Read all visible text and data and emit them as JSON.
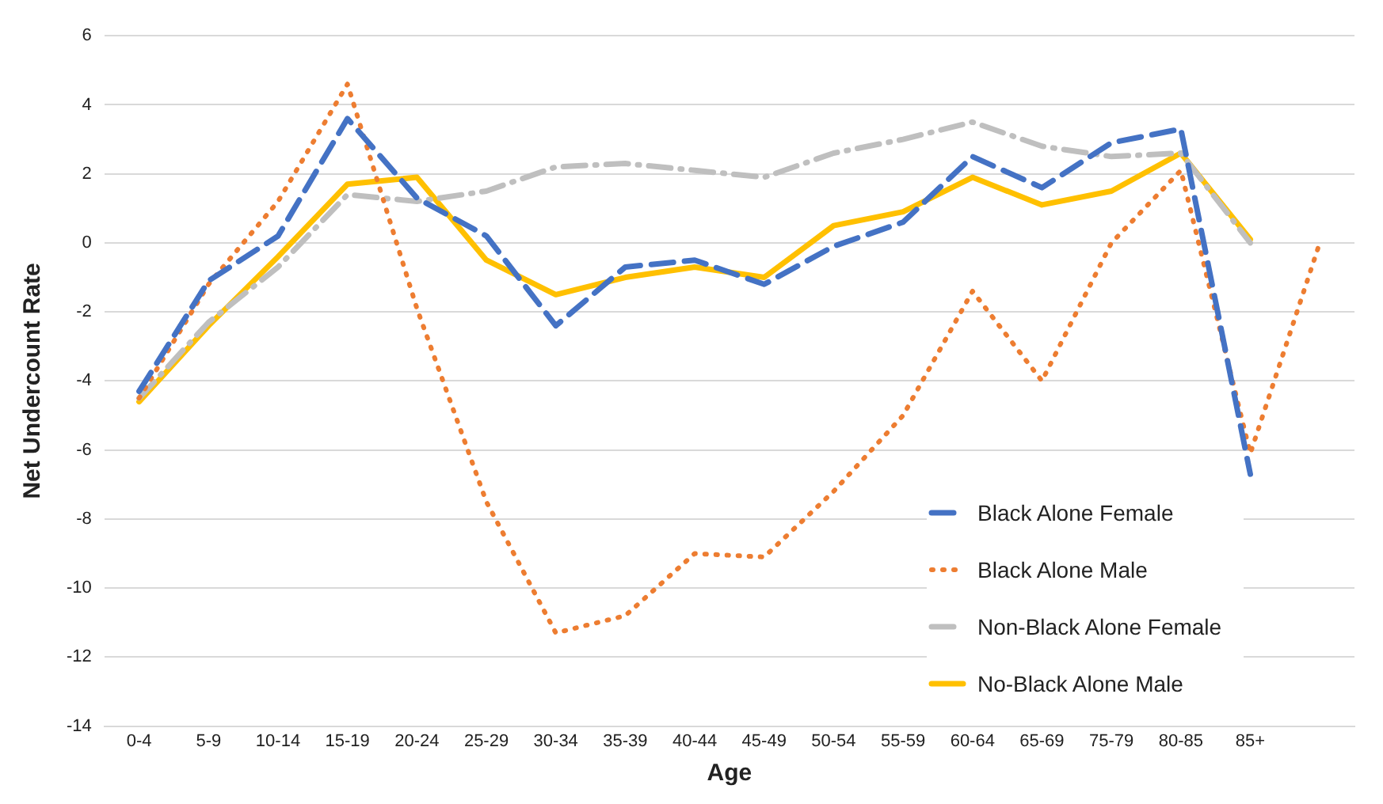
{
  "chart_data": {
    "type": "line",
    "xlabel": "Age",
    "ylabel": "Net Undercount Rate",
    "categories": [
      "0-4",
      "5-9",
      "10-14",
      "15-19",
      "20-24",
      "25-29",
      "30-34",
      "35-39",
      "40-44",
      "45-49",
      "50-54",
      "55-59",
      "60-64",
      "65-69",
      "75-79",
      "80-85",
      "85+",
      null
    ],
    "series": [
      {
        "name": "Black Alone Female",
        "color": "#4472c4",
        "line_style": "dashed",
        "values": [
          -4.3,
          -1.1,
          0.2,
          3.6,
          1.3,
          0.2,
          -2.4,
          -0.7,
          -0.5,
          -1.2,
          -0.1,
          0.6,
          2.5,
          1.6,
          2.9,
          3.3,
          -6.7,
          null
        ]
      },
      {
        "name": "Black Alone Male",
        "color": "#ed7d31",
        "line_style": "dotted",
        "values": [
          -4.5,
          -1.2,
          1.2,
          4.6,
          -1.9,
          -7.5,
          -11.3,
          -10.8,
          -9.0,
          -9.1,
          -7.2,
          -5.0,
          -1.4,
          -4.0,
          0.0,
          2.1,
          -6.1,
          0.0
        ]
      },
      {
        "name": "Non-Black Alone Female",
        "color": "#bfbfbf",
        "line_style": "dashdot",
        "values": [
          -4.5,
          -2.3,
          -0.7,
          1.4,
          1.2,
          1.5,
          2.2,
          2.3,
          2.1,
          1.9,
          2.6,
          3.0,
          3.5,
          2.8,
          2.5,
          2.6,
          0.0,
          null
        ]
      },
      {
        "name": "No-Black Alone Male",
        "color": "#ffc000",
        "line_style": "solid",
        "values": [
          -4.6,
          -2.4,
          -0.4,
          1.7,
          1.9,
          -0.5,
          -1.5,
          -1.0,
          -0.7,
          -1.0,
          0.5,
          0.9,
          1.9,
          1.1,
          1.5,
          2.6,
          0.1,
          null
        ]
      }
    ],
    "ylim": [
      -14,
      6
    ],
    "yticks": [
      -14,
      -12,
      -10,
      -8,
      -6,
      -4,
      -2,
      0,
      2,
      4,
      6
    ],
    "grid": "y",
    "legend": "bottom right",
    "marker": "none"
  }
}
